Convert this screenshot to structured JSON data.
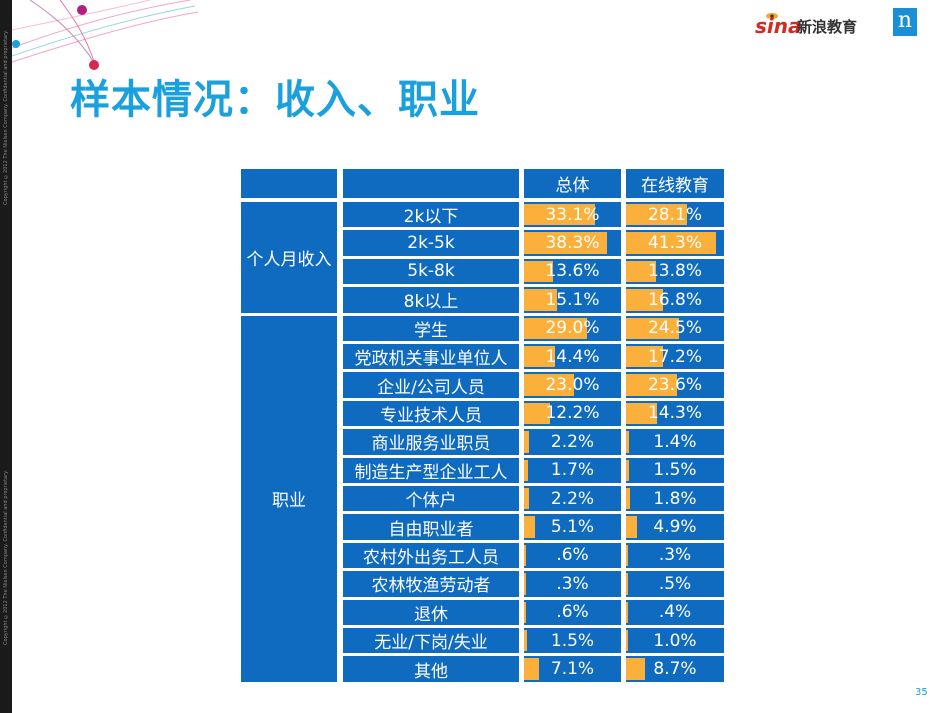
{
  "title": "样本情况：收入、职业",
  "page_number": "35",
  "logo": {
    "sina_text": "sina",
    "edu_text": "新浪教育",
    "nielsen_mark": "n"
  },
  "copyright_top": "Copyright ©2012 The Nielsen Company. Confidential and proprietary.",
  "copyright_bottom": "Copyright ©2012 The Nielsen Company. Confidential and proprietary.",
  "colors": {
    "cell_blue": "#0f6bbf",
    "bar_orange": "#fbb03b",
    "title_blue": "#1aa0dc"
  },
  "table": {
    "headers": [
      "",
      "",
      "总体",
      "在线教育"
    ],
    "groups": [
      {
        "name": "个人月收入",
        "rows": [
          {
            "label": "2k以下",
            "overall": "33.1%",
            "online": "28.1%",
            "overall_value": 33.1,
            "online_value": 28.1
          },
          {
            "label": "2k-5k",
            "overall": "38.3%",
            "online": "41.3%",
            "overall_value": 38.3,
            "online_value": 41.3
          },
          {
            "label": "5k-8k",
            "overall": "13.6%",
            "online": "13.8%",
            "overall_value": 13.6,
            "online_value": 13.8
          },
          {
            "label": "8k以上",
            "overall": "15.1%",
            "online": "16.8%",
            "overall_value": 15.1,
            "online_value": 16.8
          }
        ]
      },
      {
        "name": "职业",
        "rows": [
          {
            "label": "学生",
            "overall": "29.0%",
            "online": "24.5%",
            "overall_value": 29.0,
            "online_value": 24.5
          },
          {
            "label": "党政机关事业单位人",
            "overall": "14.4%",
            "online": "17.2%",
            "overall_value": 14.4,
            "online_value": 17.2
          },
          {
            "label": "企业/公司人员",
            "overall": "23.0%",
            "online": "23.6%",
            "overall_value": 23.0,
            "online_value": 23.6
          },
          {
            "label": "专业技术人员",
            "overall": "12.2%",
            "online": "14.3%",
            "overall_value": 12.2,
            "online_value": 14.3
          },
          {
            "label": "商业服务业职员",
            "overall": "2.2%",
            "online": "1.4%",
            "overall_value": 2.2,
            "online_value": 1.4
          },
          {
            "label": "制造生产型企业工人",
            "overall": "1.7%",
            "online": "1.5%",
            "overall_value": 1.7,
            "online_value": 1.5
          },
          {
            "label": "个体户",
            "overall": "2.2%",
            "online": "1.8%",
            "overall_value": 2.2,
            "online_value": 1.8
          },
          {
            "label": "自由职业者",
            "overall": "5.1%",
            "online": "4.9%",
            "overall_value": 5.1,
            "online_value": 4.9
          },
          {
            "label": "农村外出务工人员",
            "overall": ".6%",
            "online": ".3%",
            "overall_value": 0.6,
            "online_value": 0.3
          },
          {
            "label": "农林牧渔劳动者",
            "overall": ".3%",
            "online": ".5%",
            "overall_value": 0.3,
            "online_value": 0.5
          },
          {
            "label": "退休",
            "overall": ".6%",
            "online": ".4%",
            "overall_value": 0.6,
            "online_value": 0.4
          },
          {
            "label": "无业/下岗/失业",
            "overall": "1.5%",
            "online": "1.0%",
            "overall_value": 1.5,
            "online_value": 1.0
          },
          {
            "label": "其他",
            "overall": "7.1%",
            "online": "8.7%",
            "overall_value": 7.1,
            "online_value": 8.7
          }
        ]
      }
    ]
  }
}
